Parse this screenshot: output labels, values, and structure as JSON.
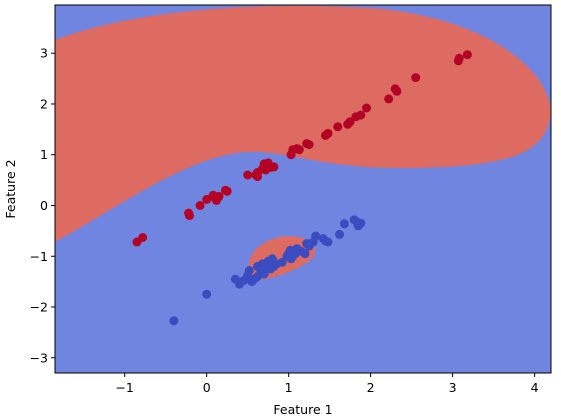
{
  "chart_data": {
    "type": "scatter",
    "title": "",
    "xlabel": "Feature 1",
    "ylabel": "Feature 2",
    "xlim": [
      -1.85,
      4.2
    ],
    "ylim": [
      -3.3,
      3.95
    ],
    "xticks": [
      -1,
      0,
      1,
      2,
      3,
      4
    ],
    "yticks": [
      -3,
      -2,
      -1,
      0,
      1,
      2,
      3
    ],
    "grid": false,
    "legend": "none",
    "background_regions": {
      "class_0_color": "#7085e0",
      "class_1_color": "#dd6b61",
      "description_classes": [
        0,
        1
      ]
    },
    "series": [
      {
        "color": "#b40426",
        "points": [
          [
            -0.85,
            -0.72
          ],
          [
            -0.78,
            -0.63
          ],
          [
            -0.22,
            -0.15
          ],
          [
            -0.21,
            -0.2
          ],
          [
            -0.08,
            0.0
          ],
          [
            0.0,
            0.12
          ],
          [
            0.08,
            0.2
          ],
          [
            0.12,
            0.1
          ],
          [
            0.1,
            0.15
          ],
          [
            0.15,
            0.18
          ],
          [
            0.23,
            0.3
          ],
          [
            0.25,
            0.28
          ],
          [
            0.5,
            0.6
          ],
          [
            0.6,
            0.6
          ],
          [
            0.62,
            0.57
          ],
          [
            0.62,
            0.65
          ],
          [
            0.68,
            0.72
          ],
          [
            0.7,
            0.82
          ],
          [
            0.72,
            0.7
          ],
          [
            0.75,
            0.84
          ],
          [
            0.78,
            0.75
          ],
          [
            0.82,
            0.76
          ],
          [
            1.03,
            1.0
          ],
          [
            1.05,
            1.1
          ],
          [
            1.1,
            1.12
          ],
          [
            1.13,
            1.1
          ],
          [
            1.22,
            1.22
          ],
          [
            1.25,
            1.2
          ],
          [
            1.45,
            1.38
          ],
          [
            1.48,
            1.42
          ],
          [
            1.6,
            1.55
          ],
          [
            1.72,
            1.6
          ],
          [
            1.75,
            1.65
          ],
          [
            1.82,
            1.75
          ],
          [
            1.88,
            1.78
          ],
          [
            1.95,
            1.92
          ],
          [
            2.22,
            2.1
          ],
          [
            2.3,
            2.3
          ],
          [
            2.32,
            2.25
          ],
          [
            2.55,
            2.52
          ],
          [
            3.07,
            2.85
          ],
          [
            3.08,
            2.9
          ],
          [
            3.18,
            2.97
          ]
        ]
      },
      {
        "color": "#3b4cc0",
        "points": [
          [
            -0.4,
            -2.27
          ],
          [
            0.0,
            -1.75
          ],
          [
            0.35,
            -1.45
          ],
          [
            0.4,
            -1.55
          ],
          [
            0.45,
            -1.48
          ],
          [
            0.5,
            -1.38
          ],
          [
            0.52,
            -1.28
          ],
          [
            0.55,
            -1.5
          ],
          [
            0.58,
            -1.45
          ],
          [
            0.62,
            -1.4
          ],
          [
            0.62,
            -1.2
          ],
          [
            0.65,
            -1.25
          ],
          [
            0.68,
            -1.15
          ],
          [
            0.7,
            -1.35
          ],
          [
            0.72,
            -1.2
          ],
          [
            0.75,
            -1.1
          ],
          [
            0.78,
            -1.25
          ],
          [
            0.8,
            -1.05
          ],
          [
            0.82,
            -1.2
          ],
          [
            0.85,
            -1.15
          ],
          [
            0.92,
            -1.12
          ],
          [
            0.98,
            -1.0
          ],
          [
            1.0,
            -0.95
          ],
          [
            1.02,
            -0.88
          ],
          [
            1.03,
            -1.05
          ],
          [
            1.05,
            -1.0
          ],
          [
            1.08,
            -0.95
          ],
          [
            1.1,
            -0.85
          ],
          [
            1.15,
            -0.9
          ],
          [
            1.2,
            -0.95
          ],
          [
            1.22,
            -0.75
          ],
          [
            1.25,
            -0.8
          ],
          [
            1.3,
            -0.72
          ],
          [
            1.33,
            -0.6
          ],
          [
            1.42,
            -0.65
          ],
          [
            1.45,
            -0.7
          ],
          [
            1.48,
            -0.72
          ],
          [
            1.62,
            -0.57
          ],
          [
            1.68,
            -0.36
          ],
          [
            1.8,
            -0.28
          ],
          [
            1.83,
            -0.32
          ],
          [
            1.85,
            -0.4
          ],
          [
            1.88,
            -0.35
          ]
        ]
      }
    ]
  }
}
